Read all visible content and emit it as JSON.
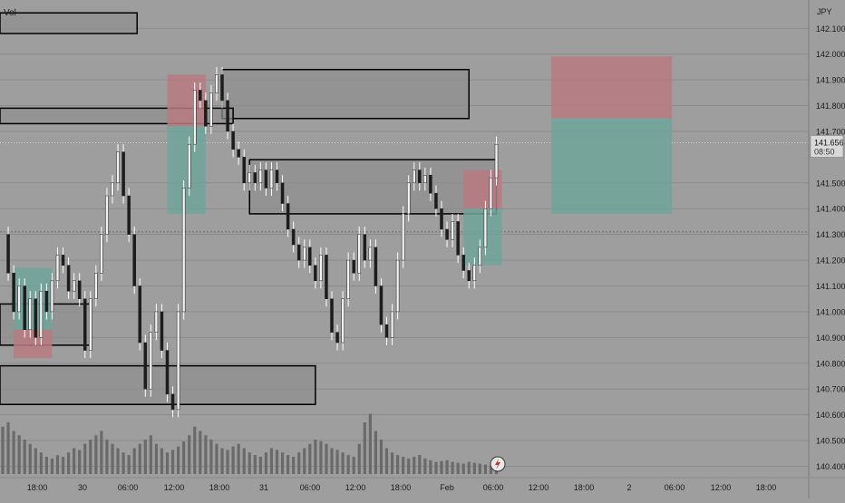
{
  "chart_data": {
    "type": "candlestick",
    "instrument_label": "JPY",
    "indicator_label": "Vol",
    "price_axis": {
      "ticks": [
        142.1,
        142.0,
        141.9,
        141.8,
        141.7,
        141.5,
        141.4,
        141.3,
        141.2,
        141.1,
        141.0,
        140.9,
        140.8,
        140.7,
        140.6,
        140.5,
        140.4
      ],
      "tick_labels": [
        "142.100",
        "142.000",
        "141.900",
        "141.800",
        "141.700",
        "141.500",
        "141.400",
        "141.300",
        "141.200",
        "141.100",
        "141.000",
        "140.900",
        "140.800",
        "140.700",
        "140.600",
        "140.500",
        "140.400"
      ],
      "range": [
        140.37,
        142.21
      ]
    },
    "current_price": {
      "value": 141.656,
      "label": "141.656",
      "countdown": "08:50"
    },
    "time_axis": {
      "labels": [
        "18:00",
        "30",
        "06:00",
        "12:00",
        "18:00",
        "31",
        "06:00",
        "12:00",
        "18:00",
        "Feb",
        "06:00",
        "12:00",
        "18:00",
        "2",
        "06:00",
        "12:00",
        "18:00"
      ]
    },
    "price_path": [
      [
        0,
        141.3
      ],
      [
        1,
        141.15
      ],
      [
        2,
        141.0
      ],
      [
        3,
        141.1
      ],
      [
        4,
        140.93
      ],
      [
        5,
        141.05
      ],
      [
        6,
        140.9
      ],
      [
        7,
        141.08
      ],
      [
        8,
        141.0
      ],
      [
        9,
        141.12
      ],
      [
        10,
        141.22
      ],
      [
        11,
        141.18
      ],
      [
        12,
        141.08
      ],
      [
        13,
        141.12
      ],
      [
        14,
        141.05
      ],
      [
        15,
        140.85
      ],
      [
        16,
        141.05
      ],
      [
        17,
        141.15
      ],
      [
        18,
        141.3
      ],
      [
        19,
        141.45
      ],
      [
        20,
        141.5
      ],
      [
        21,
        141.62
      ],
      [
        22,
        141.45
      ],
      [
        23,
        141.3
      ],
      [
        24,
        141.1
      ],
      [
        25,
        140.88
      ],
      [
        26,
        140.7
      ],
      [
        27,
        140.92
      ],
      [
        28,
        141.0
      ],
      [
        29,
        140.85
      ],
      [
        30,
        140.68
      ],
      [
        31,
        140.62
      ],
      [
        32,
        141.0
      ],
      [
        33,
        141.48
      ],
      [
        34,
        141.65
      ],
      [
        35,
        141.86
      ],
      [
        36,
        141.82
      ],
      [
        37,
        141.72
      ],
      [
        38,
        141.85
      ],
      [
        39,
        141.92
      ],
      [
        40,
        141.82
      ],
      [
        41,
        141.7
      ],
      [
        42,
        141.63
      ],
      [
        43,
        141.6
      ],
      [
        44,
        141.5
      ],
      [
        45,
        141.54
      ],
      [
        46,
        141.5
      ],
      [
        47,
        141.55
      ],
      [
        48,
        141.48
      ],
      [
        49,
        141.55
      ],
      [
        50,
        141.5
      ],
      [
        51,
        141.42
      ],
      [
        52,
        141.32
      ],
      [
        53,
        141.26
      ],
      [
        54,
        141.2
      ],
      [
        55,
        141.25
      ],
      [
        56,
        141.18
      ],
      [
        57,
        141.12
      ],
      [
        58,
        141.22
      ],
      [
        59,
        141.05
      ],
      [
        60,
        140.92
      ],
      [
        61,
        140.88
      ],
      [
        62,
        141.05
      ],
      [
        63,
        141.2
      ],
      [
        64,
        141.15
      ],
      [
        65,
        141.3
      ],
      [
        66,
        141.2
      ],
      [
        67,
        141.25
      ],
      [
        68,
        141.1
      ],
      [
        69,
        140.95
      ],
      [
        70,
        140.9
      ],
      [
        71,
        141.0
      ],
      [
        72,
        141.2
      ],
      [
        73,
        141.38
      ],
      [
        74,
        141.5
      ],
      [
        75,
        141.55
      ],
      [
        76,
        141.5
      ],
      [
        77,
        141.53
      ],
      [
        78,
        141.46
      ],
      [
        79,
        141.4
      ],
      [
        80,
        141.32
      ],
      [
        81,
        141.28
      ],
      [
        82,
        141.35
      ],
      [
        83,
        141.22
      ],
      [
        84,
        141.16
      ],
      [
        85,
        141.12
      ],
      [
        86,
        141.18
      ],
      [
        87,
        141.25
      ],
      [
        88,
        141.4
      ],
      [
        89,
        141.52
      ],
      [
        90,
        141.65
      ]
    ],
    "volume": [
      0.55,
      0.6,
      0.5,
      0.45,
      0.4,
      0.35,
      0.3,
      0.25,
      0.2,
      0.18,
      0.22,
      0.2,
      0.25,
      0.3,
      0.28,
      0.35,
      0.4,
      0.45,
      0.5,
      0.4,
      0.35,
      0.3,
      0.25,
      0.22,
      0.3,
      0.35,
      0.4,
      0.45,
      0.35,
      0.3,
      0.25,
      0.28,
      0.32,
      0.38,
      0.45,
      0.55,
      0.5,
      0.45,
      0.4,
      0.35,
      0.3,
      0.28,
      0.32,
      0.35,
      0.3,
      0.25,
      0.22,
      0.2,
      0.25,
      0.3,
      0.28,
      0.25,
      0.22,
      0.2,
      0.25,
      0.3,
      0.35,
      0.4,
      0.38,
      0.35,
      0.3,
      0.28,
      0.25,
      0.22,
      0.2,
      0.35,
      0.6,
      0.7,
      0.5,
      0.4,
      0.3,
      0.25,
      0.22,
      0.2,
      0.18,
      0.2,
      0.22,
      0.18,
      0.16,
      0.14,
      0.15,
      0.16,
      0.14,
      0.13,
      0.12,
      0.14,
      0.13,
      0.12,
      0.11,
      0.1,
      0.12
    ],
    "zones": [
      {
        "type": "box",
        "x0": -0.5,
        "x1": 24.5,
        "top": 142.16,
        "bottom": 142.08
      },
      {
        "type": "box",
        "x0": 40,
        "x1": 85,
        "top": 141.94,
        "bottom": 141.75
      },
      {
        "type": "box",
        "x0": -0.5,
        "x1": 42,
        "top": 141.79,
        "bottom": 141.73
      },
      {
        "type": "box",
        "x0": 45,
        "x1": 90,
        "top": 141.59,
        "bottom": 141.38
      },
      {
        "type": "box",
        "x0": -0.5,
        "x1": 16,
        "top": 141.03,
        "bottom": 140.87
      },
      {
        "type": "box",
        "x0": -0.5,
        "x1": 57,
        "top": 140.79,
        "bottom": 140.64
      },
      {
        "type": "stop",
        "x0": 30,
        "x1": 37,
        "top": 141.92,
        "bottom": 141.72
      },
      {
        "type": "target",
        "x0": 30,
        "x1": 37,
        "top": 141.72,
        "bottom": 141.38
      },
      {
        "type": "stop",
        "x0": 84,
        "x1": 91,
        "top": 141.55,
        "bottom": 141.4
      },
      {
        "type": "target",
        "x0": 84,
        "x1": 91,
        "top": 141.4,
        "bottom": 141.18
      },
      {
        "type": "stop",
        "x0": 2,
        "x1": 9,
        "top": 140.93,
        "bottom": 140.82
      },
      {
        "type": "target",
        "x0": 2,
        "x1": 9,
        "top": 141.17,
        "bottom": 140.93
      },
      {
        "type": "stop",
        "x0": 100,
        "x1": 122,
        "top": 141.99,
        "bottom": 141.75
      },
      {
        "type": "target",
        "x0": 100,
        "x1": 122,
        "top": 141.75,
        "bottom": 141.38
      }
    ],
    "grid": true,
    "colors": {
      "background": "#9e9e9e",
      "grid": "#8a8a8a",
      "candle": "#f2f2f2",
      "candle_wick": "#ffffff",
      "volume": "#6a6a6a",
      "box_stroke": "#000000",
      "box_fill": "#8f8f8f",
      "stop_fill": "#b77a80",
      "target_fill": "#6fa399",
      "axis_text": "#1a1a1a",
      "price_label_bg": "#d9d9d9"
    }
  }
}
